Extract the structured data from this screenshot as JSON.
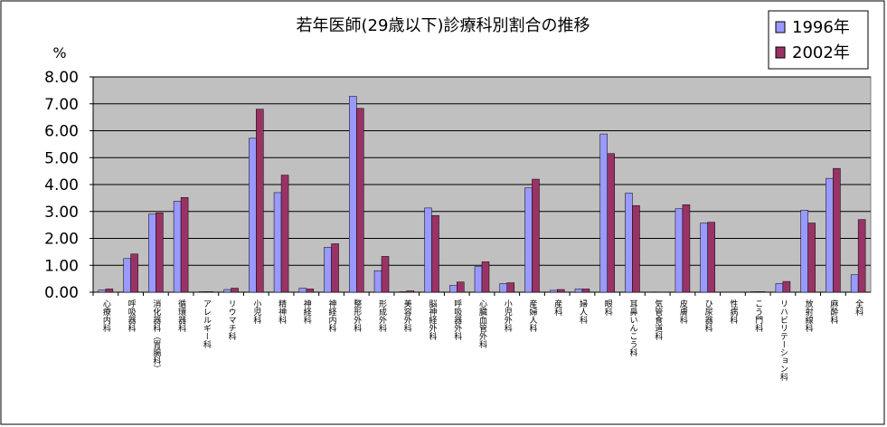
{
  "chart_data": {
    "type": "bar",
    "title": "若年医師(29歳以下)診療科別割合の推移",
    "ylabel": "%",
    "categories": [
      "心療内科",
      "呼吸器科",
      "消化器科（胃腸科）",
      "循環器科",
      "アレルギー科",
      "リウマチ科",
      "小児科",
      "精神科",
      "神経科",
      "神経内科",
      "整形外科",
      "形成外科",
      "美容外科",
      "脳神経外科",
      "呼吸器外科",
      "心臓血管外科",
      "小児外科",
      "産婦人科",
      "産科",
      "婦人科",
      "眼科",
      "耳鼻いんこう科",
      "気管食道科",
      "皮膚科",
      "ひ尿器科",
      "性病科",
      "こう門科",
      "リハビリテーション科",
      "放射線科",
      "麻酔科",
      "全科"
    ],
    "series": [
      {
        "name": "1996年",
        "color": "#9999ff",
        "values": [
          0.08,
          1.25,
          2.9,
          3.38,
          0.02,
          0.1,
          5.72,
          3.7,
          0.15,
          1.67,
          7.28,
          0.8,
          0.02,
          3.13,
          0.25,
          0.95,
          0.32,
          3.88,
          0.07,
          0.12,
          5.88,
          3.68,
          0.01,
          3.1,
          2.57,
          0,
          0.02,
          0.32,
          3.05,
          4.23,
          0.65
        ]
      },
      {
        "name": "2002年",
        "color": "#993366",
        "values": [
          0.12,
          1.42,
          2.95,
          3.52,
          0.02,
          0.15,
          6.8,
          4.35,
          0.12,
          1.8,
          6.83,
          1.33,
          0.05,
          2.85,
          0.38,
          1.13,
          0.35,
          4.2,
          0.1,
          0.12,
          5.15,
          3.22,
          0,
          3.25,
          2.6,
          0,
          0.02,
          0.4,
          2.57,
          4.6,
          2.7
        ]
      }
    ],
    "ylim": [
      0,
      8
    ],
    "yticks": [
      {
        "value": 0,
        "label": "0.00"
      },
      {
        "value": 1,
        "label": "1.00"
      },
      {
        "value": 2,
        "label": "2.00"
      },
      {
        "value": 3,
        "label": "3.00"
      },
      {
        "value": 4,
        "label": "4.00"
      },
      {
        "value": 5,
        "label": "5.00"
      },
      {
        "value": 6,
        "label": "6.00"
      },
      {
        "value": 7,
        "label": "7.00"
      },
      {
        "value": 8,
        "label": "8.00"
      }
    ],
    "grid": true,
    "plot_background": "#c0c0c0",
    "legend": "top-right"
  }
}
